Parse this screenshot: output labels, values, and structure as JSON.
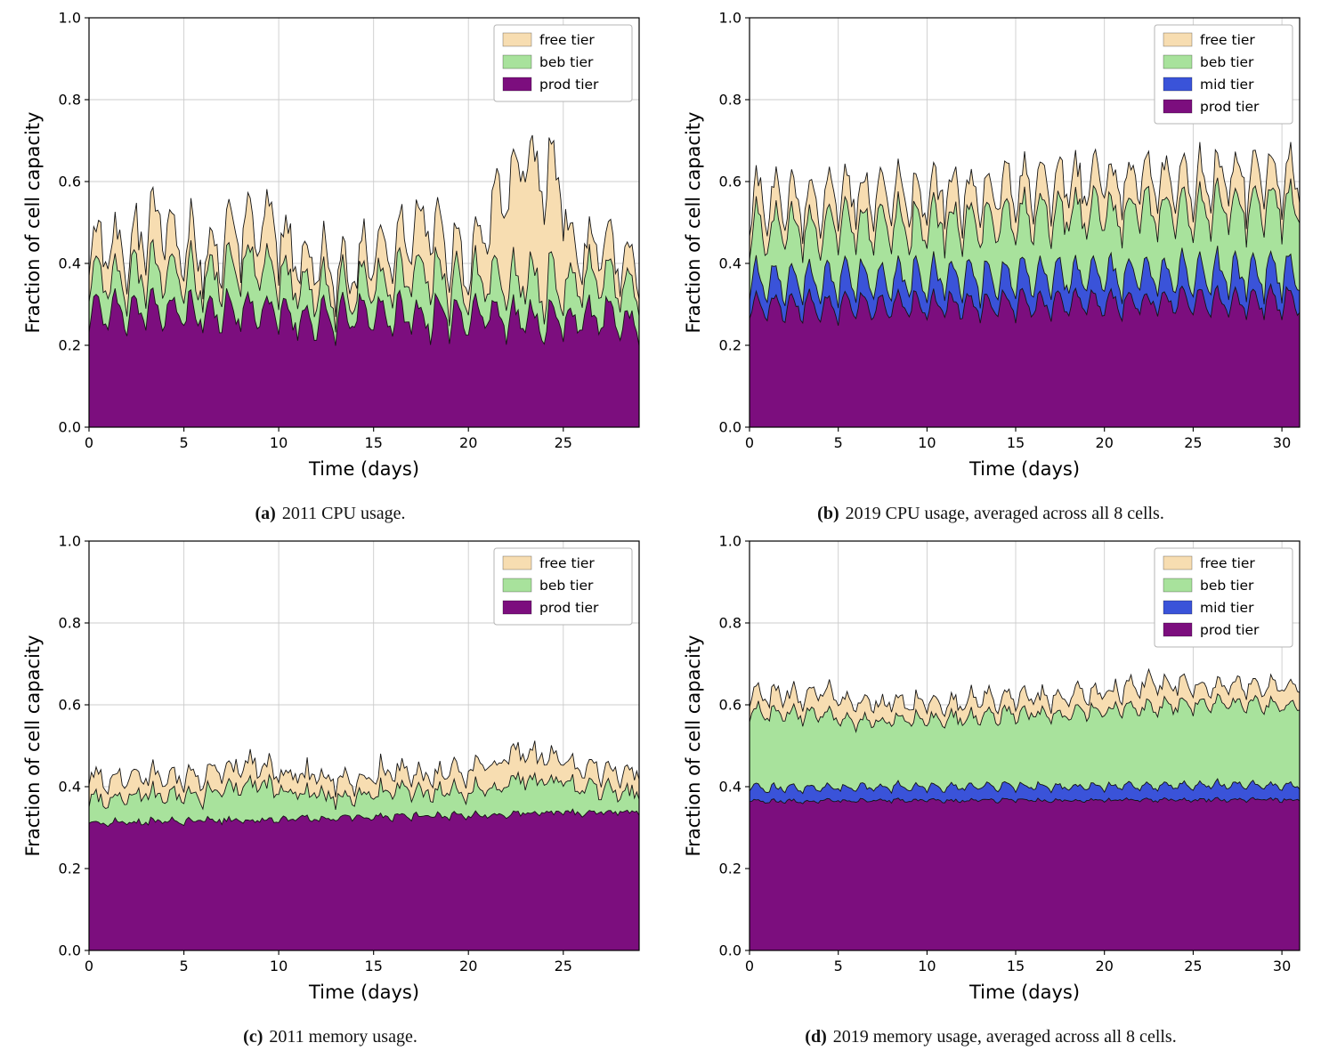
{
  "colors": {
    "free": "#f7ddb1",
    "beb": "#a8e29c",
    "mid": "#3a53d9",
    "prod": "#7c0e7e",
    "edge": "#141414",
    "grid": "#cccccc",
    "spine": "#000000",
    "legend_border": "#b4b4b4",
    "background": "#ffffff"
  },
  "chart_data": [
    {
      "type": "area",
      "stacked": true,
      "caption_label": "(a)",
      "caption_text": "2011 CPU usage.",
      "xlabel": "Time (days)",
      "ylabel": "Fraction of cell capacity",
      "xlim": [
        0,
        29
      ],
      "ylim": [
        0,
        1
      ],
      "xticks": [
        0,
        5,
        10,
        15,
        20,
        25
      ],
      "yticks": [
        0,
        0.2,
        0.4,
        0.6,
        0.8,
        1
      ],
      "grid": true,
      "legend_position": "upper right",
      "legend": [
        "free tier",
        "beb tier",
        "prod tier"
      ],
      "samples_per_day": 8,
      "series": [
        {
          "name": "prod tier",
          "color": "#7c0e7e",
          "keyframes_x": [
            0,
            3,
            6,
            9,
            12,
            15,
            18,
            21,
            24,
            27,
            29
          ],
          "keyframes_y": [
            0.28,
            0.29,
            0.28,
            0.29,
            0.26,
            0.28,
            0.27,
            0.28,
            0.26,
            0.27,
            0.26
          ],
          "diurnal_amplitude": 0.05,
          "diurnal_peak": 0.3,
          "noise_amplitude": 0.022,
          "seed": 11
        },
        {
          "name": "beb tier",
          "color": "#a8e29c",
          "keyframes_x": [
            0,
            2,
            4,
            6,
            8.5,
            11,
            13.5,
            16,
            17.5,
            19,
            21,
            23,
            25,
            27,
            29
          ],
          "keyframes_y": [
            0.09,
            0.08,
            0.11,
            0.08,
            0.12,
            0.08,
            0.06,
            0.08,
            0.11,
            0.08,
            0.09,
            0.1,
            0.08,
            0.09,
            0.08
          ],
          "diurnal_amplitude": 0.02,
          "diurnal_peak": 0.35,
          "noise_amplitude": 0.022,
          "seed": 22
        },
        {
          "name": "free tier",
          "color": "#f7ddb1",
          "keyframes_x": [
            0,
            2,
            3.8,
            4.5,
            6,
            8,
            9.5,
            11,
            13,
            15,
            16.5,
            17.8,
            19,
            20.3,
            21,
            21.8,
            23,
            24,
            24.8,
            25.3,
            26,
            27.5,
            29
          ],
          "keyframes_y": [
            0.08,
            0.07,
            0.12,
            0.08,
            0.06,
            0.08,
            0.11,
            0.07,
            0.05,
            0.07,
            0.09,
            0.13,
            0.08,
            0.06,
            0.14,
            0.22,
            0.3,
            0.26,
            0.28,
            0.1,
            0.07,
            0.08,
            0.06
          ],
          "diurnal_amplitude": 0.02,
          "diurnal_peak": 0.5,
          "noise_amplitude": 0.03,
          "seed": 33
        }
      ]
    },
    {
      "type": "area",
      "stacked": true,
      "caption_label": "(b)",
      "caption_text": "2019 CPU usage, averaged across all 8 cells.",
      "xlabel": "Time (days)",
      "ylabel": "Fraction of cell capacity",
      "xlim": [
        0,
        31
      ],
      "ylim": [
        0,
        1
      ],
      "xticks": [
        0,
        5,
        10,
        15,
        20,
        25,
        30
      ],
      "yticks": [
        0,
        0.2,
        0.4,
        0.6,
        0.8,
        1
      ],
      "grid": true,
      "legend_position": "upper right",
      "legend": [
        "free tier",
        "beb tier",
        "mid tier",
        "prod tier"
      ],
      "samples_per_day": 8,
      "series": [
        {
          "name": "prod tier",
          "color": "#7c0e7e",
          "keyframes_x": [
            0,
            8,
            16,
            24,
            31
          ],
          "keyframes_y": [
            0.295,
            0.298,
            0.302,
            0.308,
            0.308
          ],
          "diurnal_amplitude": 0.038,
          "diurnal_peak": 0.3,
          "noise_amplitude": 0.012,
          "seed": 44
        },
        {
          "name": "mid tier",
          "color": "#3a53d9",
          "keyframes_x": [
            0,
            31
          ],
          "keyframes_y": [
            0.065,
            0.07
          ],
          "diurnal_amplitude": 0.02,
          "diurnal_peak": 0.32,
          "noise_amplitude": 0.012,
          "seed": 55
        },
        {
          "name": "beb tier",
          "color": "#a8e29c",
          "keyframes_x": [
            0,
            6,
            12,
            18,
            24,
            31
          ],
          "keyframes_y": [
            0.13,
            0.132,
            0.14,
            0.15,
            0.16,
            0.168
          ],
          "diurnal_amplitude": 0.014,
          "diurnal_peak": 0.6,
          "noise_amplitude": 0.022,
          "seed": 66
        },
        {
          "name": "free tier",
          "color": "#f7ddb1",
          "keyframes_x": [
            0,
            8,
            16,
            24,
            31
          ],
          "keyframes_y": [
            0.072,
            0.075,
            0.078,
            0.075,
            0.07
          ],
          "diurnal_amplitude": 0.012,
          "diurnal_peak": 0.55,
          "noise_amplitude": 0.02,
          "seed": 77
        }
      ]
    },
    {
      "type": "area",
      "stacked": true,
      "caption_label": "(c)",
      "caption_text": "2011 memory usage.",
      "xlabel": "Time (days)",
      "ylabel": "Fraction of cell capacity",
      "xlim": [
        0,
        29
      ],
      "ylim": [
        0,
        1
      ],
      "xticks": [
        0,
        5,
        10,
        15,
        20,
        25
      ],
      "yticks": [
        0,
        0.2,
        0.4,
        0.6,
        0.8,
        1
      ],
      "grid": true,
      "legend_position": "upper right",
      "legend": [
        "free tier",
        "beb tier",
        "prod tier"
      ],
      "samples_per_day": 8,
      "series": [
        {
          "name": "prod tier",
          "color": "#7c0e7e",
          "keyframes_x": [
            0,
            5,
            10,
            15,
            20,
            25,
            29
          ],
          "keyframes_y": [
            0.312,
            0.316,
            0.32,
            0.326,
            0.33,
            0.336,
            0.34
          ],
          "diurnal_amplitude": 0.006,
          "diurnal_peak": 0.3,
          "noise_amplitude": 0.007,
          "seed": 88
        },
        {
          "name": "beb tier",
          "color": "#a8e29c",
          "keyframes_x": [
            0,
            3,
            6,
            8.8,
            10,
            13,
            16,
            19,
            22,
            23.5,
            26,
            29
          ],
          "keyframes_y": [
            0.06,
            0.065,
            0.06,
            0.095,
            0.07,
            0.05,
            0.06,
            0.055,
            0.075,
            0.085,
            0.06,
            0.05
          ],
          "diurnal_amplitude": 0.012,
          "diurnal_peak": 0.35,
          "noise_amplitude": 0.018,
          "seed": 99
        },
        {
          "name": "free tier",
          "color": "#f7ddb1",
          "keyframes_x": [
            0,
            5,
            9,
            14,
            18,
            21.5,
            23,
            25,
            29
          ],
          "keyframes_y": [
            0.05,
            0.045,
            0.05,
            0.04,
            0.045,
            0.06,
            0.068,
            0.05,
            0.045
          ],
          "diurnal_amplitude": 0.008,
          "diurnal_peak": 0.45,
          "noise_amplitude": 0.012,
          "seed": 111
        }
      ]
    },
    {
      "type": "area",
      "stacked": true,
      "caption_label": "(d)",
      "caption_text": "2019 memory usage, averaged across all 8 cells.",
      "xlabel": "Time (days)",
      "ylabel": "Fraction of cell capacity",
      "xlim": [
        0,
        31
      ],
      "ylim": [
        0,
        1
      ],
      "xticks": [
        0,
        5,
        10,
        15,
        20,
        25,
        30
      ],
      "yticks": [
        0,
        0.2,
        0.4,
        0.6,
        0.8,
        1
      ],
      "grid": true,
      "legend_position": "upper right",
      "legend": [
        "free tier",
        "beb tier",
        "mid tier",
        "prod tier"
      ],
      "samples_per_day": 8,
      "series": [
        {
          "name": "prod tier",
          "color": "#7c0e7e",
          "keyframes_x": [
            0,
            31
          ],
          "keyframes_y": [
            0.365,
            0.368
          ],
          "diurnal_amplitude": 0.003,
          "diurnal_peak": 0.3,
          "noise_amplitude": 0.004,
          "seed": 122
        },
        {
          "name": "mid tier",
          "color": "#3a53d9",
          "keyframes_x": [
            0,
            31
          ],
          "keyframes_y": [
            0.032,
            0.036
          ],
          "diurnal_amplitude": 0.007,
          "diurnal_peak": 0.35,
          "noise_amplitude": 0.004,
          "seed": 133
        },
        {
          "name": "beb tier",
          "color": "#a8e29c",
          "keyframes_x": [
            0,
            4,
            6,
            9,
            12,
            16,
            20,
            24,
            27,
            31
          ],
          "keyframes_y": [
            0.186,
            0.18,
            0.158,
            0.165,
            0.17,
            0.176,
            0.186,
            0.196,
            0.2,
            0.196
          ],
          "diurnal_amplitude": 0.008,
          "diurnal_peak": 0.5,
          "noise_amplitude": 0.011,
          "seed": 144
        },
        {
          "name": "free tier",
          "color": "#f7ddb1",
          "keyframes_x": [
            0,
            4,
            8,
            15,
            21,
            22.8,
            24,
            27,
            31
          ],
          "keyframes_y": [
            0.045,
            0.05,
            0.042,
            0.04,
            0.045,
            0.062,
            0.048,
            0.042,
            0.046
          ],
          "diurnal_amplitude": 0.006,
          "diurnal_peak": 0.5,
          "noise_amplitude": 0.011,
          "seed": 155
        }
      ]
    }
  ]
}
